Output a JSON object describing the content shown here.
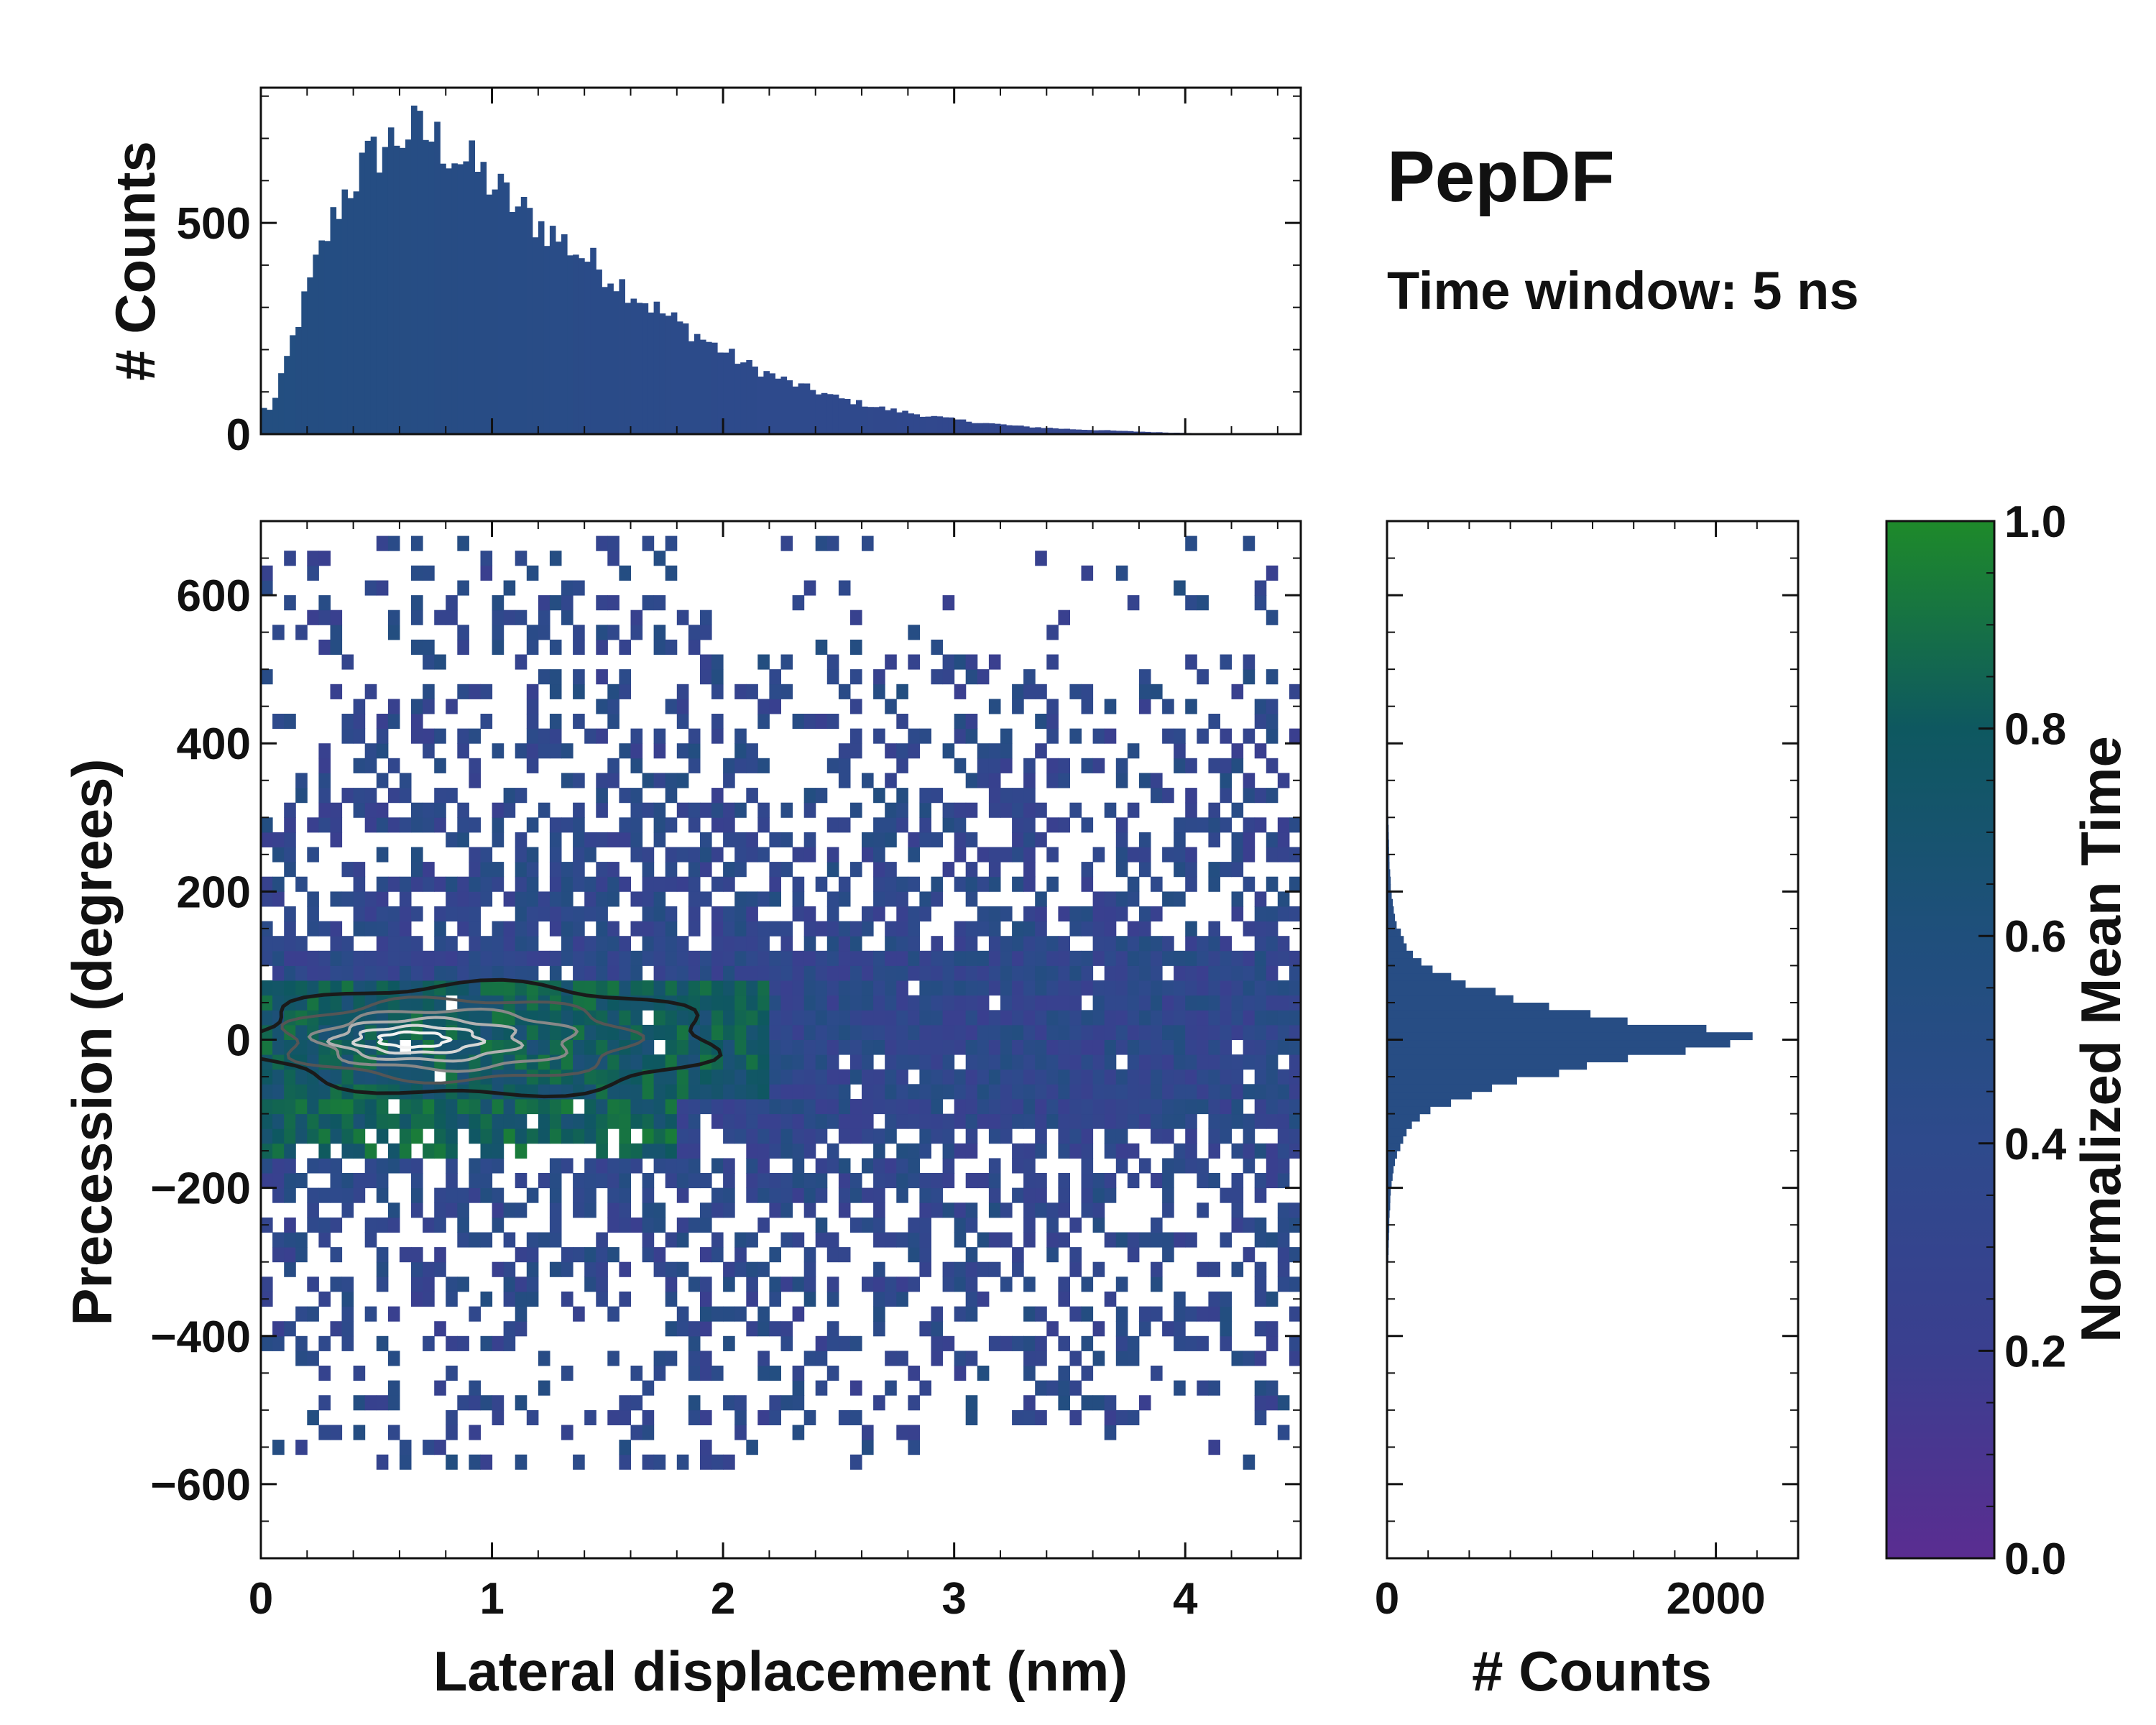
{
  "title": "PepDF",
  "subtitle": "Time window: 5 ns",
  "chart_data": [
    {
      "id": "joint-heatmap",
      "type": "heatmap",
      "xlabel": "Lateral displacement (nm)",
      "ylabel": "Precession (degrees)",
      "xlim": [
        0,
        4.5
      ],
      "ylim": [
        -700,
        700
      ],
      "xticks": [
        0,
        1,
        2,
        3,
        4
      ],
      "yticks": [
        -600,
        -400,
        -200,
        0,
        200,
        400,
        600
      ],
      "xtick_labels": [
        "0",
        "1",
        "2",
        "3",
        "4"
      ],
      "ytick_labels": [
        "−600",
        "−400",
        "−200",
        "0",
        "200",
        "400",
        "600"
      ],
      "color_metric": "Normalized Mean Time",
      "density_core": {
        "x_peak": 0.65,
        "y_peak": 0,
        "x_extent": [
          0,
          2.0
        ],
        "y_extent": [
          -80,
          80
        ]
      },
      "scatter_envelope": {
        "x_max": 4.45,
        "y_max": 680,
        "y_min": -570
      },
      "contours": "density contours centered near (0.65 nm, 0°)"
    },
    {
      "id": "top-histogram",
      "type": "bar",
      "ylabel": "# Counts",
      "xlim": [
        0,
        4.5
      ],
      "ylim": [
        0,
        820
      ],
      "yticks": [
        0,
        500
      ],
      "ytick_labels": [
        "0",
        "500"
      ],
      "bin_width": 0.025,
      "x": [
        0.05,
        0.15,
        0.25,
        0.35,
        0.45,
        0.55,
        0.65,
        0.75,
        0.85,
        0.95,
        1.1,
        1.3,
        1.5,
        1.7,
        1.9,
        2.1,
        2.3,
        2.5,
        2.7,
        2.9,
        3.1,
        3.3,
        3.5,
        3.7,
        3.9,
        4.1,
        4.3,
        4.5
      ],
      "values": [
        60,
        250,
        420,
        560,
        640,
        690,
        720,
        700,
        660,
        620,
        540,
        460,
        380,
        300,
        230,
        165,
        120,
        85,
        60,
        42,
        28,
        18,
        12,
        8,
        4,
        2,
        1,
        0
      ]
    },
    {
      "id": "right-histogram",
      "type": "bar",
      "orientation": "horizontal",
      "xlabel": "# Counts",
      "xlim": [
        0,
        2500
      ],
      "ylim": [
        -700,
        700
      ],
      "xticks": [
        0,
        2000
      ],
      "xtick_labels": [
        "0",
        "2000"
      ],
      "bin_width": 10,
      "y": [
        -320,
        -280,
        -240,
        -200,
        -160,
        -120,
        -100,
        -80,
        -60,
        -40,
        -20,
        0,
        20,
        40,
        60,
        80,
        100,
        120,
        160,
        200,
        240,
        280,
        320
      ],
      "values": [
        5,
        10,
        15,
        25,
        50,
        130,
        220,
        420,
        700,
        1100,
        1700,
        2250,
        1700,
        1100,
        700,
        420,
        220,
        130,
        50,
        25,
        15,
        10,
        5
      ]
    },
    {
      "id": "colorbar",
      "type": "colorbar",
      "label": "Normalized Mean Time",
      "range": [
        0,
        1
      ],
      "ticks": [
        0,
        0.2,
        0.4,
        0.6,
        0.8,
        1.0
      ],
      "tick_labels": [
        "0.0",
        "0.2",
        "0.4",
        "0.6",
        "0.8",
        "1.0"
      ],
      "colors": [
        "#5a2d91",
        "#3a3f8f",
        "#2e4a8c",
        "#1f4f7c",
        "#0e5860",
        "#1e8a2a"
      ]
    }
  ]
}
